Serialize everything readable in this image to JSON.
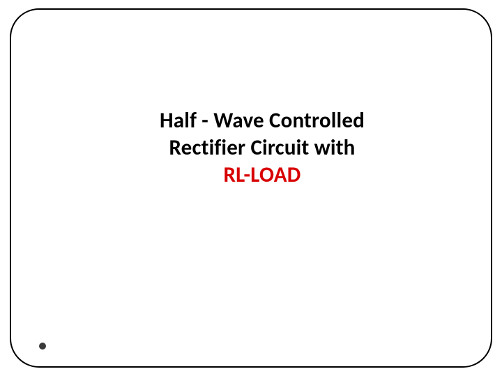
{
  "slide": {
    "title_line1": "Half - Wave Controlled",
    "title_line2": "Rectifier Circuit with",
    "title_line3": "RL-LOAD",
    "title_fontsize": 31,
    "title_color": "#000000",
    "highlight_color": "#d80000",
    "border_color": "#000000",
    "border_radius": 42,
    "background_color": "#ffffff",
    "bullet_color": "#3a3a3a"
  }
}
